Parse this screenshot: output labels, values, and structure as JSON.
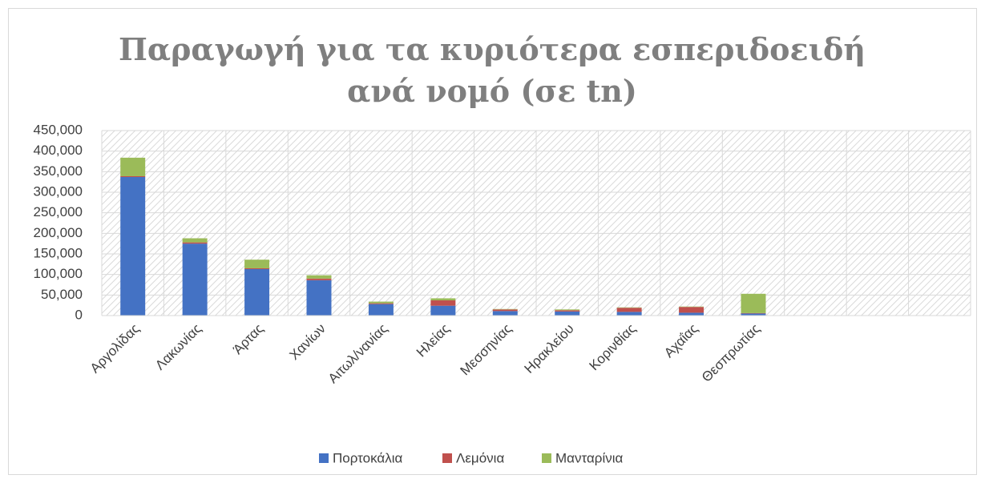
{
  "chart_data": {
    "type": "stacked-bar",
    "title": "Παραγωγή για τα κυριότερα εσπεριδοειδή ανά νομό (σε tn)",
    "categories": [
      "Αργολίδας",
      "Λακωνίας",
      "Άρτας",
      "Χανίων",
      "Αιτωλ/νανίας",
      "Ηλείας",
      "Μεσσηνίας",
      "Ηρακλείου",
      "Κορινθίας",
      "Αχαΐας",
      "Θεσπρωτίας",
      null,
      null,
      null
    ],
    "series": [
      {
        "name": "Πορτοκάλια",
        "color": "#4472c4",
        "values": [
          337000,
          175000,
          113000,
          86000,
          28000,
          24000,
          11000,
          10000,
          9000,
          7000,
          5000,
          null,
          null,
          null
        ]
      },
      {
        "name": "Λεμόνια",
        "color": "#c0504d",
        "values": [
          2000,
          3000,
          2000,
          4000,
          2000,
          13000,
          4000,
          3000,
          10000,
          14000,
          1000,
          null,
          null,
          null
        ]
      },
      {
        "name": "Μανταρίνια",
        "color": "#9bbb59",
        "values": [
          45000,
          10000,
          21000,
          8000,
          4000,
          5000,
          1000,
          2000,
          1000,
          1000,
          47000,
          null,
          null,
          null
        ]
      }
    ],
    "ylim": [
      0,
      450000
    ],
    "yticks": [
      0,
      {
        "value": 50000,
        "label": "50,000"
      },
      {
        "value": 100000,
        "label": "100,000"
      },
      {
        "value": 150000,
        "label": "150,000"
      },
      {
        "value": 200000,
        "label": "200,000"
      },
      {
        "value": 250000,
        "label": "250,000"
      },
      {
        "value": 300000,
        "label": "300,000"
      },
      {
        "value": 350000,
        "label": "350,000"
      },
      {
        "value": 400000,
        "label": "400,000"
      },
      {
        "value": 450000,
        "label": "450,000"
      }
    ],
    "grid": true,
    "legend": "bottom"
  }
}
